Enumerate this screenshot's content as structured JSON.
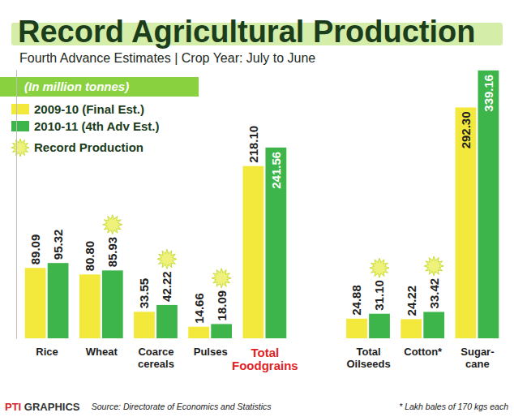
{
  "chart_data": {
    "type": "bar",
    "title": "Record Agricultural Production",
    "subtitle": "Fourth Advance Estimates | Crop Year: July to June",
    "unit_label": "(In million tonnes)",
    "categories": [
      "Rice",
      "Wheat",
      "Coarce cereals",
      "Pulses",
      "Total Foodgrains",
      "Total Oilseeds",
      "Cotton*",
      "Sugar-cane"
    ],
    "series": [
      {
        "name": "2009-10 (Final Est.)",
        "color": "#f2e93c",
        "values": [
          89.09,
          80.8,
          33.55,
          14.66,
          218.1,
          24.88,
          24.22,
          292.3
        ],
        "value_labels": [
          "89.09",
          "80.80",
          "33.55",
          "14.66",
          "218.10",
          "24.88",
          "24.22",
          "292.30"
        ]
      },
      {
        "name": "2010-11 (4th Adv Est.)",
        "color": "#3db54a",
        "values": [
          95.32,
          85.93,
          42.22,
          18.09,
          241.56,
          31.1,
          33.42,
          339.16
        ],
        "value_labels": [
          "95.32",
          "85.93",
          "42.22",
          "18.09",
          "241.56",
          "31.10",
          "33.42",
          "339.16"
        ]
      }
    ],
    "record_production": {
      "label": "Record Production",
      "flags": [
        false,
        true,
        true,
        true,
        false,
        true,
        true,
        false
      ]
    },
    "ylim": [
      0,
      340
    ],
    "data_labels": true,
    "tick_labels": "x",
    "legend": "top-left",
    "note": "* Lakh bales of 170 kgs each",
    "source": "Source: Directorate of Economics and Statistics",
    "credit": "PTI GRAPHICS"
  }
}
